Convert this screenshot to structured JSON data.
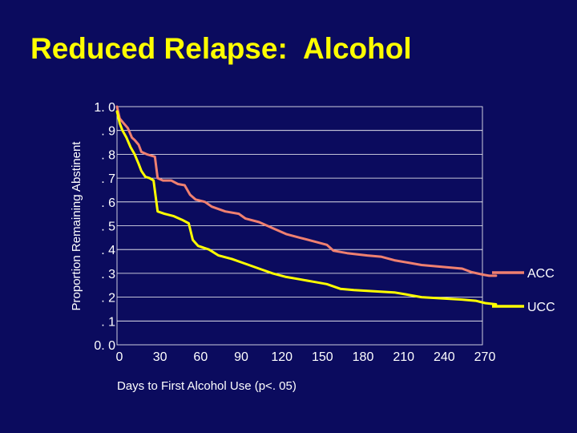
{
  "slide": {
    "title": "Reduced Relapse:  Alcohol"
  },
  "colors": {
    "background": "#0b0b5e",
    "title": "#ffff00",
    "ACC": "#f08070",
    "UCC": "#ffff00",
    "grid": "#ffffff"
  },
  "chart_data": {
    "type": "line",
    "title": "Reduced Relapse:  Alcohol",
    "xlabel": "Days to First Alcohol Use   (p<. 05)",
    "ylabel": "Proportion Remaining Abstinent",
    "xlim": [
      0,
      270
    ],
    "ylim": [
      0,
      1
    ],
    "x_ticks": [
      "0",
      "30",
      "60",
      "90",
      "120",
      "150",
      "180",
      "210",
      "240",
      "270"
    ],
    "y_ticks": [
      "0. 0",
      ". 1",
      ". 2",
      ". 3",
      ". 4",
      ". 5",
      ". 6",
      ". 7",
      ". 8",
      ". 9",
      "1. 0"
    ],
    "grid": "horizontal",
    "legend": "right",
    "series": [
      {
        "name": "ACC",
        "color": "#f08070",
        "points": [
          [
            0,
            1.0
          ],
          [
            2,
            0.95
          ],
          [
            5,
            0.93
          ],
          [
            8,
            0.91
          ],
          [
            11,
            0.87
          ],
          [
            13,
            0.86
          ],
          [
            16,
            0.84
          ],
          [
            18,
            0.81
          ],
          [
            22,
            0.8
          ],
          [
            25,
            0.795
          ],
          [
            28,
            0.79
          ],
          [
            30,
            0.7
          ],
          [
            34,
            0.69
          ],
          [
            40,
            0.69
          ],
          [
            45,
            0.675
          ],
          [
            50,
            0.67
          ],
          [
            54,
            0.63
          ],
          [
            58,
            0.61
          ],
          [
            65,
            0.6
          ],
          [
            70,
            0.58
          ],
          [
            80,
            0.56
          ],
          [
            90,
            0.55
          ],
          [
            95,
            0.53
          ],
          [
            105,
            0.515
          ],
          [
            115,
            0.49
          ],
          [
            125,
            0.465
          ],
          [
            135,
            0.45
          ],
          [
            145,
            0.435
          ],
          [
            155,
            0.42
          ],
          [
            160,
            0.395
          ],
          [
            170,
            0.385
          ],
          [
            185,
            0.375
          ],
          [
            195,
            0.37
          ],
          [
            205,
            0.355
          ],
          [
            215,
            0.345
          ],
          [
            225,
            0.335
          ],
          [
            235,
            0.33
          ],
          [
            245,
            0.325
          ],
          [
            255,
            0.32
          ],
          [
            262,
            0.305
          ],
          [
            270,
            0.295
          ],
          [
            275,
            0.29
          ],
          [
            280,
            0.29
          ]
        ]
      },
      {
        "name": "UCC",
        "color": "#ffff00",
        "points": [
          [
            0,
            0.98
          ],
          [
            2,
            0.93
          ],
          [
            4,
            0.9
          ],
          [
            7,
            0.87
          ],
          [
            10,
            0.83
          ],
          [
            13,
            0.8
          ],
          [
            16,
            0.76
          ],
          [
            18,
            0.73
          ],
          [
            21,
            0.705
          ],
          [
            24,
            0.7
          ],
          [
            27,
            0.69
          ],
          [
            30,
            0.56
          ],
          [
            35,
            0.55
          ],
          [
            42,
            0.54
          ],
          [
            48,
            0.525
          ],
          [
            53,
            0.51
          ],
          [
            56,
            0.44
          ],
          [
            60,
            0.415
          ],
          [
            68,
            0.4
          ],
          [
            75,
            0.375
          ],
          [
            85,
            0.36
          ],
          [
            95,
            0.34
          ],
          [
            105,
            0.32
          ],
          [
            115,
            0.3
          ],
          [
            125,
            0.285
          ],
          [
            135,
            0.275
          ],
          [
            145,
            0.265
          ],
          [
            155,
            0.255
          ],
          [
            165,
            0.235
          ],
          [
            175,
            0.23
          ],
          [
            190,
            0.225
          ],
          [
            205,
            0.22
          ],
          [
            215,
            0.21
          ],
          [
            225,
            0.2
          ],
          [
            240,
            0.195
          ],
          [
            255,
            0.19
          ],
          [
            265,
            0.185
          ],
          [
            272,
            0.175
          ],
          [
            280,
            0.17
          ]
        ]
      }
    ]
  }
}
